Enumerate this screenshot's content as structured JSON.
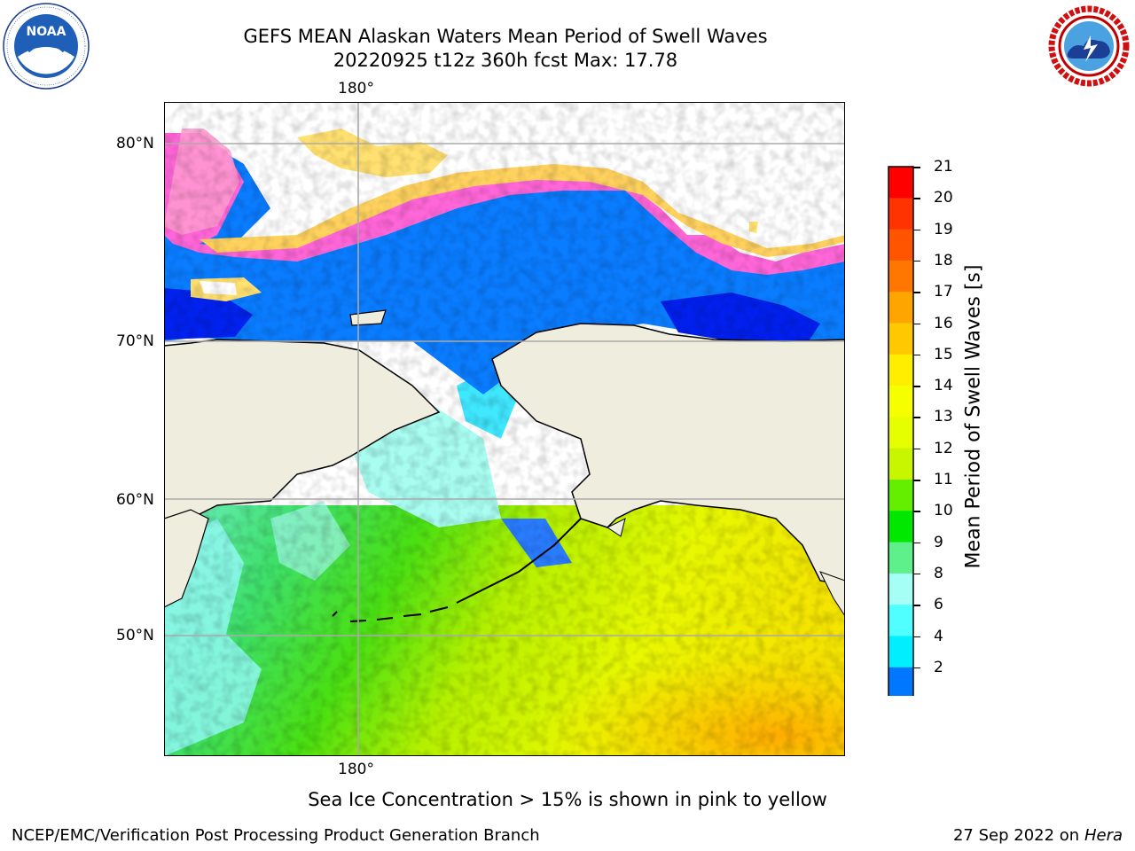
{
  "header": {
    "title_line1": "GEFS MEAN Alaskan Waters Mean Period of Swell Waves",
    "title_line2": "20220925 t12z 360h fcst   Max: 17.78"
  },
  "logos": {
    "left": {
      "name": "NOAA",
      "ring_text": "NATIONAL OCEANIC AND ATMOSPHERIC ADMINISTRATION · U.S. DEPARTMENT OF COMMERCE"
    },
    "right": {
      "name": "NATIONAL WEATHER SERVICE"
    }
  },
  "map": {
    "lon_label_top": "180°",
    "lon_label_bottom": "180°",
    "lat_labels": [
      "80°N",
      "70°N",
      "60°N",
      "50°N"
    ],
    "colors": {
      "land": "#efedde",
      "ice_free": "#ffffff",
      "coast": "#000000",
      "grid": "#b0b0b0"
    }
  },
  "colorbar": {
    "title": "Mean Period of Swell Waves [s]",
    "ticks": [
      "21",
      "20",
      "19",
      "18",
      "17",
      "16",
      "15",
      "14",
      "13",
      "12",
      "11",
      "10",
      "9",
      "8",
      "6",
      "4",
      "2"
    ],
    "colors": [
      "#ff0000",
      "#ff3300",
      "#ff5500",
      "#ff7700",
      "#ffa500",
      "#ffc800",
      "#ffee00",
      "#f5ff00",
      "#e6ff00",
      "#c8f500",
      "#64ef00",
      "#00e800",
      "#5ef08a",
      "#a6fff5",
      "#50ffff",
      "#00eeff",
      "#0077ff"
    ],
    "under_color": "#0000ff"
  },
  "note": "Sea Ice Concentration > 15% is shown in pink to yellow",
  "footer": {
    "left": "NCEP/EMC/Verification Post Processing Product Generation Branch",
    "right_date": "27 Sep 2022 on",
    "right_host": "Hera"
  }
}
